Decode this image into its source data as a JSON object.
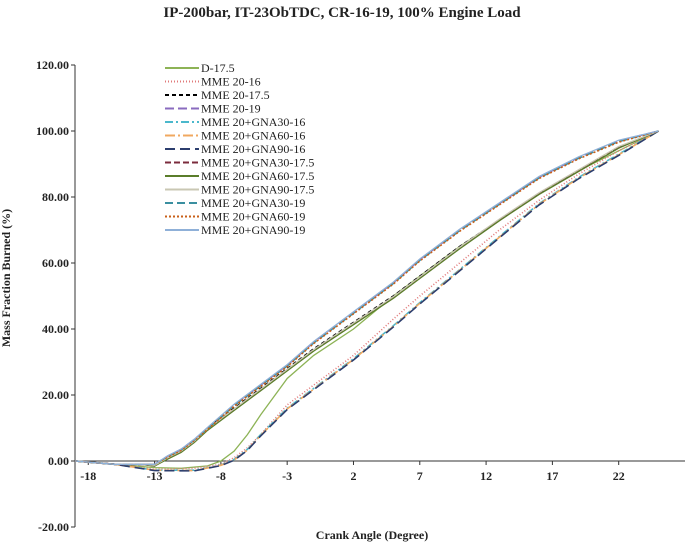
{
  "chart_data": {
    "type": "line",
    "title": "IP-200bar, IT-23ObTDC, CR-16-19, 100% Engine Load",
    "xlabel": "Crank Angle (Degree)",
    "ylabel": "Mass Fraction Burned (%)",
    "xlim": [
      -19,
      27
    ],
    "ylim": [
      -20,
      120
    ],
    "x_ticks": [
      -18,
      -13,
      -8,
      -3,
      2,
      7,
      12,
      17,
      22
    ],
    "x_tick_labels": [
      "-18",
      "-13",
      "-8",
      "-3",
      "2",
      "7",
      "12",
      "17",
      "22"
    ],
    "y_ticks": [
      -20,
      0,
      20,
      40,
      60,
      80,
      100,
      120
    ],
    "y_tick_labels": [
      "-20.00",
      "0.00",
      "20.00",
      "40.00",
      "60.00",
      "80.00",
      "100.00",
      "120.00"
    ],
    "grid": false,
    "legend_position": "top-left",
    "series": [
      {
        "name": "D-17.5",
        "color": "#8db356",
        "dash": "solid",
        "x": [
          -19,
          -16,
          -13,
          -11,
          -9,
          -8,
          -7,
          -6,
          -5,
          -3,
          -1,
          2,
          5,
          7,
          10,
          13,
          16,
          19,
          22,
          25
        ],
        "y": [
          0,
          -1,
          -2,
          -2.2,
          -1.5,
          0,
          3,
          8,
          14,
          25,
          32,
          40,
          50,
          56,
          65,
          73,
          81,
          88,
          94,
          100
        ]
      },
      {
        "name": "MME 20-16",
        "color": "#e07a7a",
        "dash": "1,2",
        "x": [
          -19,
          -16,
          -13,
          -10,
          -8,
          -7,
          -6,
          -5,
          -3,
          -1,
          2,
          5,
          7,
          10,
          13,
          16,
          19,
          22,
          25
        ],
        "y": [
          0,
          -1,
          -2.5,
          -2.2,
          -1,
          1,
          4,
          8,
          17,
          23,
          32,
          43,
          50,
          60,
          70,
          79,
          87,
          94,
          100
        ]
      },
      {
        "name": "MME 20-17.5",
        "color": "#000000",
        "dash": "4,3",
        "x": [
          -19,
          -16,
          -14,
          -13,
          -12,
          -11,
          -10,
          -9,
          -7,
          -5,
          -3,
          -1,
          2,
          5,
          7,
          10,
          13,
          16,
          19,
          22,
          25
        ],
        "y": [
          0,
          -1,
          -1,
          -1.5,
          1,
          3,
          6,
          10,
          16,
          22,
          28,
          34,
          42,
          50,
          56,
          65,
          73,
          81,
          88,
          95,
          100
        ]
      },
      {
        "name": "MME 20-19",
        "color": "#8a6bbf",
        "dash": "9,4",
        "x": [
          -19,
          -16,
          -14,
          -13,
          -12,
          -11,
          -10,
          -9,
          -7,
          -5,
          -3,
          -1,
          2,
          5,
          7,
          10,
          13,
          16,
          19,
          22,
          25
        ],
        "y": [
          0,
          -1,
          -1,
          -1,
          1.5,
          3.5,
          6.5,
          10,
          17,
          23,
          29,
          36,
          45,
          54,
          61,
          70,
          78,
          86,
          92,
          97,
          100
        ]
      },
      {
        "name": "MME 20+GNA30-16",
        "color": "#4bb8cc",
        "dash": "8,3,2,3",
        "x": [
          -19,
          -16,
          -13,
          -10,
          -8,
          -7,
          -6,
          -5,
          -3,
          -1,
          2,
          5,
          7,
          10,
          13,
          16,
          19,
          22,
          25
        ],
        "y": [
          0,
          -1,
          -2.8,
          -2.8,
          -1.2,
          0.5,
          3.5,
          8,
          16,
          22,
          31,
          41,
          48,
          58,
          68,
          78,
          86,
          93,
          100
        ]
      },
      {
        "name": "MME 20+GNA60-16",
        "color": "#f0a860",
        "dash": "10,3,2,3",
        "x": [
          -19,
          -16,
          -13,
          -10,
          -8,
          -7,
          -6,
          -5,
          -3,
          -1,
          2,
          5,
          7,
          10,
          13,
          16,
          19,
          22,
          25
        ],
        "y": [
          0,
          -1,
          -2.8,
          -2.9,
          -1.3,
          0.3,
          3.3,
          7.8,
          15.8,
          21.8,
          30.8,
          40.8,
          47.8,
          57.8,
          67.8,
          77.8,
          85.8,
          92.8,
          100
        ]
      },
      {
        "name": "MME 20+GNA90-16",
        "color": "#2c3e6e",
        "dash": "10,5",
        "x": [
          -19,
          -16,
          -13,
          -10,
          -8,
          -7,
          -6,
          -5,
          -3,
          -1,
          2,
          5,
          7,
          10,
          13,
          16,
          19,
          22,
          25
        ],
        "y": [
          0,
          -1,
          -2.9,
          -3,
          -1.4,
          0.2,
          3.2,
          7.6,
          15.6,
          21.6,
          30.6,
          40.6,
          47.6,
          57.6,
          67.6,
          77.6,
          85.6,
          92.6,
          100
        ]
      },
      {
        "name": "MME 20+GNA30-17.5",
        "color": "#7b2b3c",
        "dash": "6,3",
        "x": [
          -19,
          -16,
          -14,
          -13,
          -12,
          -11,
          -10,
          -9,
          -7,
          -5,
          -3,
          -1,
          2,
          5,
          7,
          10,
          13,
          16,
          19,
          22,
          25
        ],
        "y": [
          0,
          -1,
          -1,
          -1.5,
          0.8,
          2.8,
          5.8,
          9.5,
          15.5,
          21.5,
          27.5,
          33.5,
          41.5,
          49.5,
          55.5,
          64.5,
          73,
          81,
          88,
          95,
          100
        ]
      },
      {
        "name": "MME 20+GNA60-17.5",
        "color": "#5a7d2a",
        "dash": "solid",
        "x": [
          -19,
          -16,
          -14,
          -13,
          -12,
          -11,
          -10,
          -9,
          -7,
          -5,
          -3,
          -1,
          2,
          5,
          7,
          10,
          13,
          16,
          19,
          22,
          25
        ],
        "y": [
          0,
          -1,
          -1,
          -1.5,
          0.6,
          2.6,
          5.6,
          9.3,
          15.3,
          21.3,
          27.3,
          33.3,
          41.3,
          49.3,
          55.3,
          64.3,
          72.8,
          80.8,
          87.8,
          94.8,
          100
        ]
      },
      {
        "name": "MME 20+GNA90-17.5",
        "color": "#c9c7b3",
        "dash": "solid",
        "x": [
          -19,
          -16,
          -14,
          -13,
          -12,
          -11,
          -10,
          -9,
          -7,
          -5,
          -3,
          -1,
          2,
          5,
          7,
          10,
          13,
          16,
          19,
          22,
          25
        ],
        "y": [
          0,
          -1,
          -1,
          -1.3,
          1,
          3,
          6,
          9.8,
          15.8,
          21.8,
          27.8,
          33.8,
          41.8,
          49.8,
          55.8,
          64.8,
          73.3,
          81.3,
          88.3,
          95.3,
          100
        ]
      },
      {
        "name": "MME 20+GNA30-19",
        "color": "#3a8fa0",
        "dash": "8,4",
        "x": [
          -19,
          -16,
          -14,
          -13,
          -12,
          -11,
          -10,
          -9,
          -7,
          -5,
          -3,
          -1,
          2,
          5,
          7,
          10,
          13,
          16,
          19,
          22,
          25
        ],
        "y": [
          0,
          -1,
          -1,
          -1,
          1.4,
          3.4,
          6.4,
          9.8,
          16.8,
          22.8,
          28.8,
          35.8,
          44.8,
          53.8,
          60.8,
          69.8,
          77.8,
          85.8,
          91.8,
          96.8,
          100
        ]
      },
      {
        "name": "MME 20+GNA60-19",
        "color": "#c8601a",
        "dash": "2,2",
        "x": [
          -19,
          -16,
          -14,
          -13,
          -12,
          -11,
          -10,
          -9,
          -7,
          -5,
          -3,
          -1,
          2,
          5,
          7,
          10,
          13,
          16,
          19,
          22,
          25
        ],
        "y": [
          0,
          -1,
          -1,
          -1,
          1.2,
          3.2,
          6.2,
          9.6,
          16.6,
          22.6,
          28.6,
          35.6,
          44.6,
          53.6,
          60.6,
          69.6,
          77.6,
          85.6,
          91.6,
          96.6,
          100
        ]
      },
      {
        "name": "MME 20+GNA90-19",
        "color": "#8fb0d8",
        "dash": "solid",
        "x": [
          -19,
          -16,
          -14,
          -13,
          -12,
          -11,
          -10,
          -9,
          -7,
          -5,
          -3,
          -1,
          2,
          5,
          7,
          10,
          13,
          16,
          19,
          22,
          25
        ],
        "y": [
          0,
          -1,
          -1,
          -1,
          1.6,
          3.6,
          6.6,
          10.2,
          17.2,
          23.2,
          29.2,
          36.2,
          45.2,
          54.2,
          61.2,
          70.2,
          78.2,
          86.2,
          92.2,
          97.2,
          100
        ]
      }
    ]
  }
}
